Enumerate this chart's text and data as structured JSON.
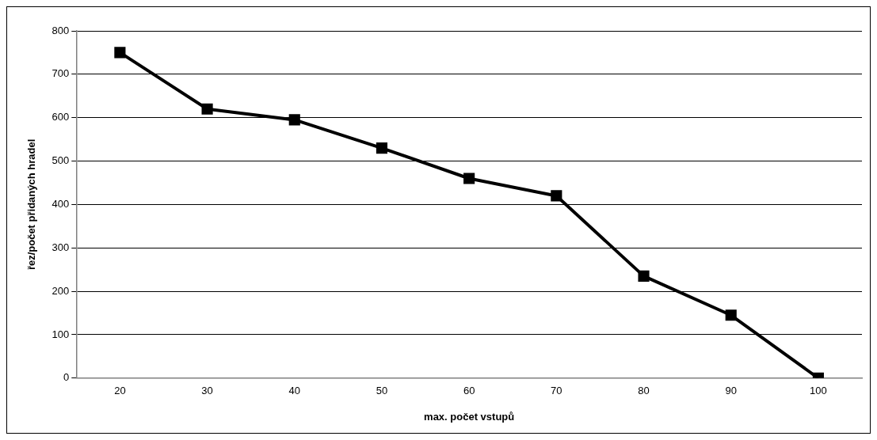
{
  "chart_data": {
    "type": "line",
    "xlabel": "max. počet vstupů",
    "ylabel": "řez/počet přidaných hradel",
    "categories": [
      "20",
      "30",
      "40",
      "50",
      "60",
      "70",
      "80",
      "90",
      "100"
    ],
    "series": [
      {
        "color": "#000000",
        "values": [
          750,
          620,
          595,
          530,
          460,
          420,
          235,
          145,
          0
        ]
      }
    ],
    "ylim": [
      0,
      800
    ],
    "yticks": [
      0,
      100,
      200,
      300,
      400,
      500,
      600,
      700,
      800
    ],
    "grid": "y",
    "legend": false,
    "marker": "square",
    "line_style": "solid"
  }
}
